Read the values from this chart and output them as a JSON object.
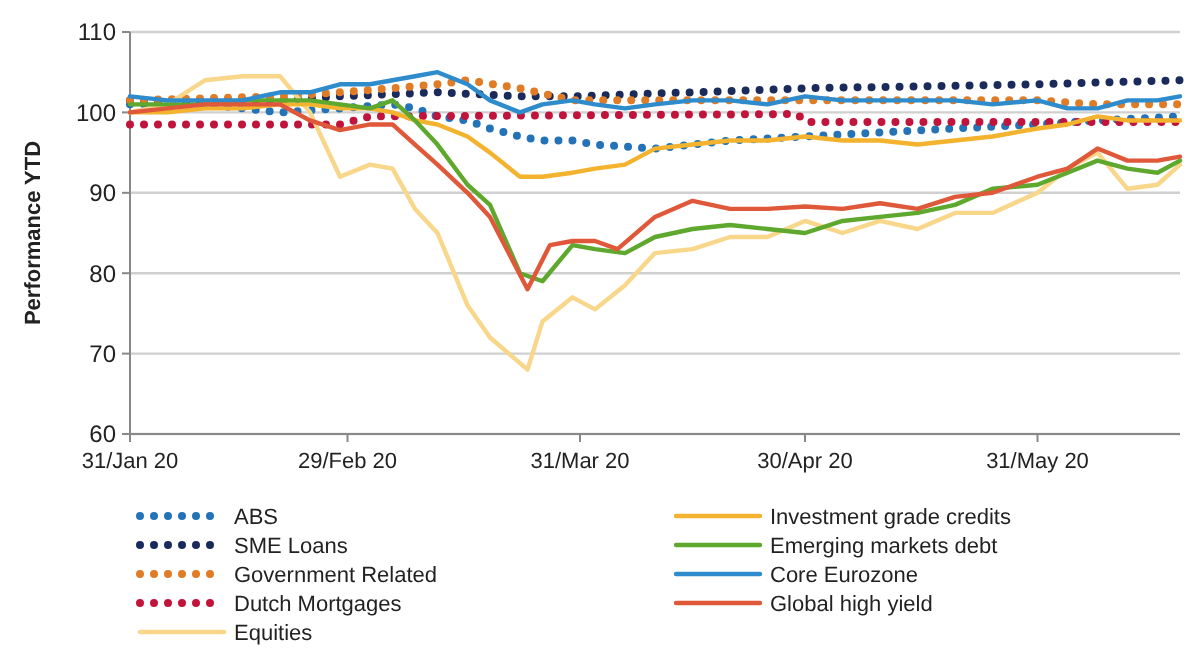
{
  "chart_data": {
    "type": "line",
    "ylabel": "Performance YTD",
    "xlim": [
      "2020-01-31",
      "2020-06-19"
    ],
    "ylim": [
      60,
      110
    ],
    "yticks": [
      60,
      70,
      80,
      90,
      100,
      110
    ],
    "xticks": [
      {
        "value": "2020-01-31",
        "label": "31/Jan 20"
      },
      {
        "value": "2020-02-29",
        "label": "29/Feb 20"
      },
      {
        "value": "2020-03-31",
        "label": "31/Mar 20"
      },
      {
        "value": "2020-04-30",
        "label": "30/Apr 20"
      },
      {
        "value": "2020-05-31",
        "label": "31/May 20"
      }
    ],
    "grid": "y",
    "legend": "bottom",
    "series": [
      {
        "name": "ABS",
        "color": "#2473b6",
        "line_style": "dotted",
        "x": [
          "2020-01-31",
          "2020-02-10",
          "2020-02-20",
          "2020-02-28",
          "2020-03-06",
          "2020-03-09",
          "2020-03-12",
          "2020-03-16",
          "2020-03-19",
          "2020-03-23",
          "2020-03-26",
          "2020-03-30",
          "2020-04-02",
          "2020-04-10",
          "2020-04-20",
          "2020-04-30",
          "2020-05-10",
          "2020-05-20",
          "2020-05-31",
          "2020-06-08",
          "2020-06-19"
        ],
        "values": [
          101,
          101,
          100,
          100.5,
          101,
          100.5,
          99.5,
          99,
          98,
          97,
          96.5,
          96.5,
          96,
          95.5,
          96.5,
          97,
          97.5,
          98,
          98.5,
          99,
          99.5
        ]
      },
      {
        "name": "SME Loans",
        "color": "#1a2a5a",
        "line_style": "dotted",
        "x": [
          "2020-01-31",
          "2020-02-20",
          "2020-02-28",
          "2020-03-12",
          "2020-03-23",
          "2020-03-30",
          "2020-04-15",
          "2020-04-30",
          "2020-05-31",
          "2020-06-19"
        ],
        "values": [
          101.5,
          101.5,
          102,
          102.5,
          102,
          102,
          102.5,
          103,
          103.5,
          104
        ]
      },
      {
        "name": "Government Related",
        "color": "#e07b26",
        "line_style": "dotted",
        "x": [
          "2020-01-31",
          "2020-02-20",
          "2020-02-28",
          "2020-03-06",
          "2020-03-12",
          "2020-03-16",
          "2020-03-23",
          "2020-03-30",
          "2020-04-15",
          "2020-04-30",
          "2020-05-31",
          "2020-06-08",
          "2020-06-19"
        ],
        "values": [
          101.5,
          102,
          102.5,
          103,
          103.5,
          104,
          103,
          101.5,
          101.5,
          101.5,
          101.5,
          101,
          101
        ]
      },
      {
        "name": "Dutch Mortgages",
        "color": "#c0143c",
        "line_style": "dotted",
        "x": [
          "2020-01-31",
          "2020-02-28",
          "2020-03-03",
          "2020-04-29",
          "2020-04-30",
          "2020-06-19"
        ],
        "values": [
          98.5,
          98.5,
          99.5,
          99.8,
          98.8,
          98.8
        ]
      },
      {
        "name": "Equities",
        "color": "#f8d68a",
        "line_style": "solid",
        "x": [
          "2020-01-31",
          "2020-02-05",
          "2020-02-10",
          "2020-02-15",
          "2020-02-20",
          "2020-02-24",
          "2020-02-28",
          "2020-03-03",
          "2020-03-06",
          "2020-03-09",
          "2020-03-12",
          "2020-03-16",
          "2020-03-19",
          "2020-03-24",
          "2020-03-26",
          "2020-03-30",
          "2020-04-02",
          "2020-04-06",
          "2020-04-10",
          "2020-04-15",
          "2020-04-20",
          "2020-04-25",
          "2020-04-30",
          "2020-05-05",
          "2020-05-10",
          "2020-05-15",
          "2020-05-20",
          "2020-05-25",
          "2020-05-31",
          "2020-06-04",
          "2020-06-08",
          "2020-06-12",
          "2020-06-16",
          "2020-06-19"
        ],
        "values": [
          100,
          101,
          104,
          104.5,
          104.5,
          100,
          92,
          93.5,
          93,
          88,
          85,
          76,
          72,
          68,
          74,
          77,
          75.5,
          78.5,
          82.5,
          83,
          84.5,
          84.5,
          86.5,
          85,
          86.5,
          85.5,
          87.5,
          87.5,
          90,
          93,
          95,
          90.5,
          91,
          93.5
        ]
      },
      {
        "name": "Investment grade credits",
        "color": "#f3b32f",
        "line_style": "solid",
        "x": [
          "2020-01-31",
          "2020-02-05",
          "2020-02-10",
          "2020-02-15",
          "2020-02-20",
          "2020-02-24",
          "2020-02-28",
          "2020-03-03",
          "2020-03-06",
          "2020-03-09",
          "2020-03-12",
          "2020-03-16",
          "2020-03-19",
          "2020-03-23",
          "2020-03-26",
          "2020-03-30",
          "2020-04-02",
          "2020-04-06",
          "2020-04-10",
          "2020-04-15",
          "2020-04-20",
          "2020-04-25",
          "2020-04-30",
          "2020-05-05",
          "2020-05-10",
          "2020-05-15",
          "2020-05-20",
          "2020-05-25",
          "2020-05-31",
          "2020-06-04",
          "2020-06-08",
          "2020-06-12",
          "2020-06-16",
          "2020-06-19"
        ],
        "values": [
          100,
          100,
          100.5,
          100.5,
          101,
          101,
          100.5,
          100.5,
          100,
          99,
          98.5,
          97,
          95,
          92,
          92,
          92.5,
          93,
          93.5,
          95.5,
          96,
          96.5,
          96.5,
          97,
          96.5,
          96.5,
          96,
          96.5,
          97,
          98,
          98.5,
          99.5,
          99,
          99,
          99
        ]
      },
      {
        "name": "Emerging markets debt",
        "color": "#5ea82e",
        "line_style": "solid",
        "x": [
          "2020-01-31",
          "2020-02-05",
          "2020-02-10",
          "2020-02-15",
          "2020-02-20",
          "2020-02-24",
          "2020-02-28",
          "2020-03-03",
          "2020-03-06",
          "2020-03-09",
          "2020-03-12",
          "2020-03-16",
          "2020-03-19",
          "2020-03-23",
          "2020-03-26",
          "2020-03-30",
          "2020-04-02",
          "2020-04-06",
          "2020-04-10",
          "2020-04-15",
          "2020-04-20",
          "2020-04-25",
          "2020-04-30",
          "2020-05-05",
          "2020-05-10",
          "2020-05-15",
          "2020-05-20",
          "2020-05-25",
          "2020-05-31",
          "2020-06-04",
          "2020-06-08",
          "2020-06-12",
          "2020-06-16",
          "2020-06-19"
        ],
        "values": [
          101,
          101,
          101,
          101.5,
          101.5,
          101.5,
          101,
          100.5,
          101.5,
          99,
          96,
          91,
          88.5,
          80,
          79,
          83.5,
          83,
          82.5,
          84.5,
          85.5,
          86,
          85.5,
          85,
          86.5,
          87,
          87.5,
          88.5,
          90.5,
          91,
          92.5,
          94,
          93,
          92.5,
          94
        ]
      },
      {
        "name": "Core Eurozone",
        "color": "#2e8bcc",
        "line_style": "solid",
        "x": [
          "2020-01-31",
          "2020-02-05",
          "2020-02-10",
          "2020-02-15",
          "2020-02-20",
          "2020-02-24",
          "2020-02-28",
          "2020-03-03",
          "2020-03-06",
          "2020-03-09",
          "2020-03-12",
          "2020-03-16",
          "2020-03-19",
          "2020-03-23",
          "2020-03-26",
          "2020-03-30",
          "2020-04-02",
          "2020-04-06",
          "2020-04-10",
          "2020-04-15",
          "2020-04-20",
          "2020-04-25",
          "2020-04-30",
          "2020-05-05",
          "2020-05-10",
          "2020-05-15",
          "2020-05-20",
          "2020-05-25",
          "2020-05-31",
          "2020-06-04",
          "2020-06-08",
          "2020-06-12",
          "2020-06-16",
          "2020-06-19"
        ],
        "values": [
          102,
          101.5,
          101.5,
          101.5,
          102.5,
          102.5,
          103.5,
          103.5,
          104,
          104.5,
          105,
          103.5,
          101.5,
          100,
          101,
          101.5,
          101,
          100.5,
          101,
          101.5,
          101.5,
          101,
          102,
          101.5,
          101.5,
          101.5,
          101.5,
          101,
          101.5,
          100.5,
          100.5,
          101.5,
          101.5,
          102
        ]
      },
      {
        "name": "Global high yield",
        "color": "#e0583a",
        "line_style": "solid",
        "x": [
          "2020-01-31",
          "2020-02-05",
          "2020-02-10",
          "2020-02-15",
          "2020-02-20",
          "2020-02-24",
          "2020-02-28",
          "2020-03-03",
          "2020-03-06",
          "2020-03-09",
          "2020-03-12",
          "2020-03-16",
          "2020-03-19",
          "2020-03-24",
          "2020-03-27",
          "2020-03-30",
          "2020-04-02",
          "2020-04-05",
          "2020-04-10",
          "2020-04-15",
          "2020-04-20",
          "2020-04-25",
          "2020-04-30",
          "2020-05-05",
          "2020-05-10",
          "2020-05-15",
          "2020-05-20",
          "2020-05-25",
          "2020-05-31",
          "2020-06-04",
          "2020-06-08",
          "2020-06-12",
          "2020-06-16",
          "2020-06-19"
        ],
        "values": [
          100,
          100.5,
          101,
          101,
          101,
          99,
          97.8,
          98.5,
          98.5,
          96,
          93.5,
          90,
          87,
          78,
          83.5,
          84,
          84,
          83,
          87,
          89,
          88,
          88,
          88.3,
          88,
          88.7,
          88,
          89.5,
          90,
          92,
          93,
          95.5,
          94,
          94,
          94.5
        ]
      }
    ]
  }
}
